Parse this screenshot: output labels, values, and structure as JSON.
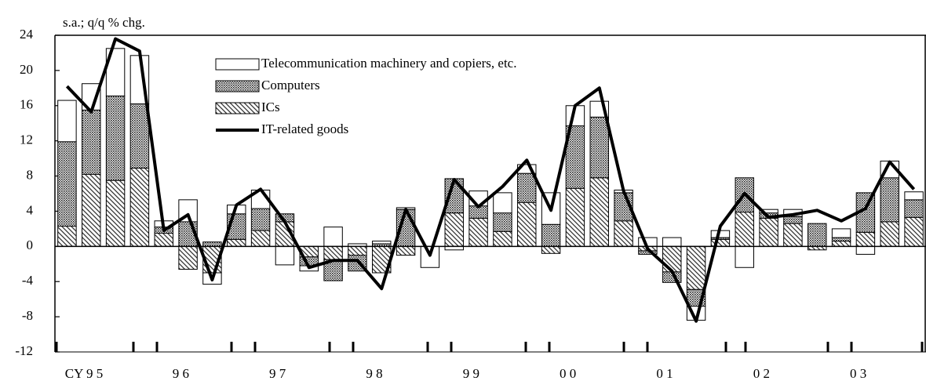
{
  "chart_data": {
    "type": "bar",
    "unit_label": "s.a.; q/q % chg.",
    "categories": [
      "CY 9 5",
      null,
      null,
      null,
      "9 6",
      null,
      null,
      null,
      "9 7",
      null,
      null,
      null,
      "9 8",
      null,
      null,
      null,
      "9 9",
      null,
      null,
      null,
      "0 0",
      null,
      null,
      null,
      "0 1",
      null,
      null,
      null,
      "0 2",
      null,
      null,
      null,
      "0 3",
      null,
      null,
      null
    ],
    "ylim": [
      -12,
      24
    ],
    "yticks": [
      -12,
      -8,
      -4,
      0,
      4,
      8,
      12,
      16,
      20,
      24
    ],
    "stacked": true,
    "series": [
      {
        "name": "Telecommunication machinery and copiers, etc.",
        "type": "bar",
        "color": "#ffffff",
        "values": [
          4.7,
          3.0,
          5.4,
          5.5,
          0.7,
          2.5,
          -1.3,
          1.0,
          2.1,
          -2.1,
          -0.6,
          2.2,
          0.3,
          0.3,
          0.2,
          -2.4,
          -0.4,
          1.7,
          2.3,
          1.0,
          3.6,
          2.3,
          1.8,
          0.3,
          1.0,
          1.0,
          -1.6,
          0.8,
          -2.4,
          0.4,
          0.8,
          0.0,
          1.0,
          -0.9,
          1.9,
          0.9
        ]
      },
      {
        "name": "Computers",
        "type": "bar",
        "color": "#7a7a7a",
        "values": [
          9.6,
          7.3,
          9.6,
          7.3,
          0.7,
          2.8,
          0.5,
          2.9,
          2.5,
          0.9,
          -1.0,
          -2.4,
          -1.8,
          0.3,
          4.2,
          0.0,
          3.9,
          1.4,
          2.1,
          3.3,
          2.5,
          7.1,
          6.9,
          3.2,
          -0.4,
          -1.2,
          -1.9,
          0.2,
          3.9,
          0.6,
          0.8,
          2.6,
          0.4,
          4.5,
          5.0,
          2.0
        ]
      },
      {
        "name": "ICs",
        "type": "bar",
        "color": "#bdbdbd",
        "values": [
          2.3,
          8.2,
          7.5,
          8.9,
          1.5,
          -2.6,
          -3.0,
          0.8,
          1.8,
          2.8,
          -1.2,
          -1.5,
          -1.0,
          -3.0,
          -1.0,
          0.0,
          3.8,
          3.2,
          1.7,
          5.0,
          -0.8,
          6.6,
          7.8,
          2.9,
          -0.5,
          -2.9,
          -4.9,
          0.8,
          3.9,
          3.2,
          2.6,
          -0.4,
          0.6,
          1.6,
          2.8,
          3.3
        ]
      },
      {
        "name": "IT-related goods",
        "type": "line",
        "color": "#000000",
        "values": [
          18.2,
          15.3,
          23.6,
          22.2,
          1.8,
          3.6,
          -3.8,
          4.7,
          6.5,
          2.8,
          -2.4,
          -1.6,
          -1.6,
          -4.8,
          4.2,
          -1.0,
          7.6,
          4.5,
          6.8,
          9.8,
          4.1,
          16.0,
          18.0,
          6.3,
          -0.3,
          -2.8,
          -8.5,
          2.3,
          6.0,
          3.3,
          3.6,
          4.1,
          2.9,
          4.3,
          9.6,
          6.5
        ]
      }
    ]
  }
}
